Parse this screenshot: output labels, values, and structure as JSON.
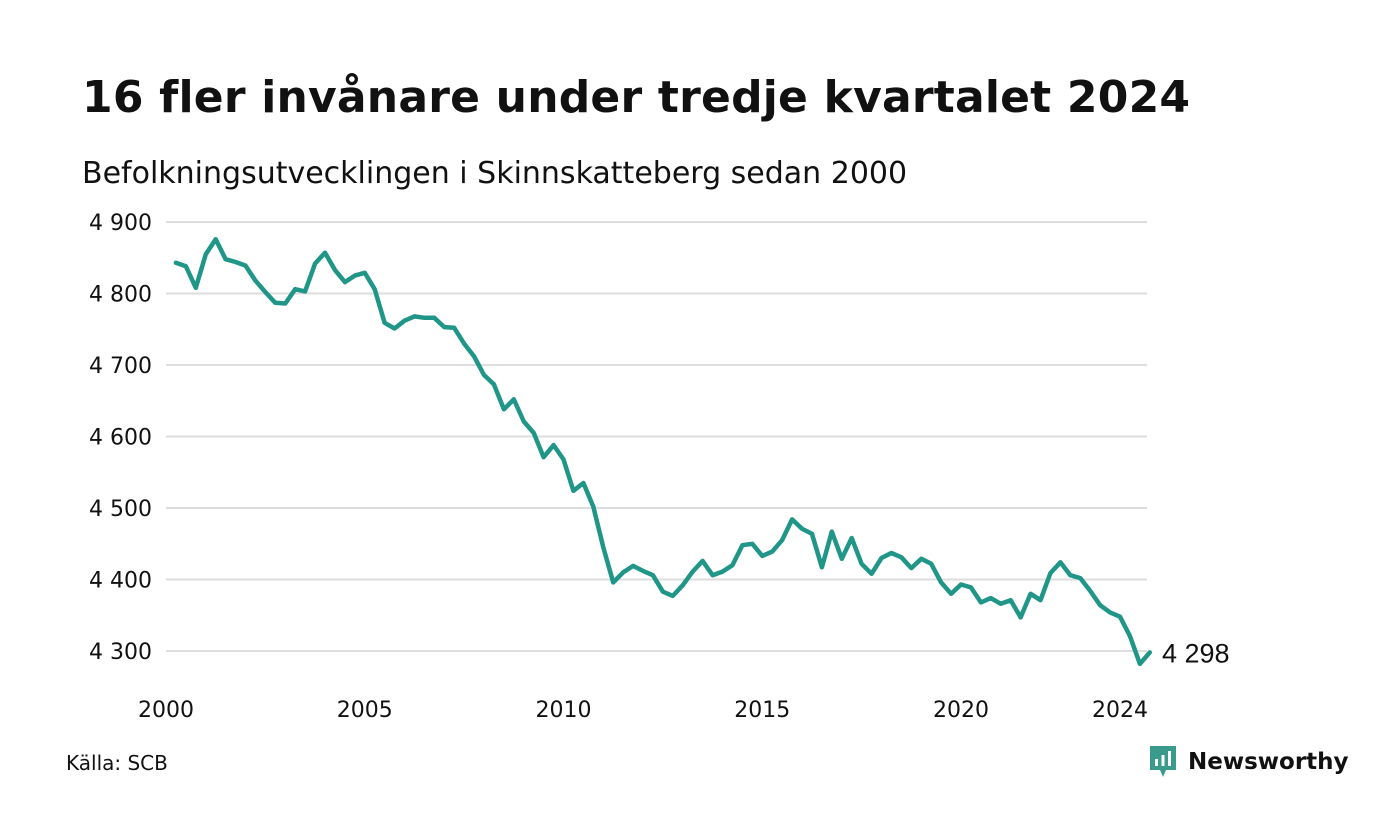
{
  "title": "16 fler invånare under tredje kvartalet 2024",
  "subtitle": "Befolkningsutvecklingen i Skinnskatteberg sedan 2000",
  "source": "Källa: SCB",
  "brand": {
    "name": "Newsworthy",
    "icon": "newsworthy-logo-icon",
    "color": "#3a9b8c"
  },
  "colors": {
    "line": "#1f9687",
    "grid": "#dddddd",
    "text": "#111111"
  },
  "chart_data": {
    "type": "line",
    "title": "16 fler invånare under tredje kvartalet 2024",
    "subtitle": "Befolkningsutvecklingen i Skinnskatteberg sedan 2000",
    "xlabel": "",
    "ylabel": "",
    "grid": "horizontal",
    "xlim": [
      2000,
      2024.75
    ],
    "ylim": [
      4282,
      4900
    ],
    "x_ticks": [
      2000,
      2005,
      2010,
      2015,
      2020,
      2024
    ],
    "y_ticks": [
      {
        "value": 4300,
        "label": "4 300"
      },
      {
        "value": 4400,
        "label": "4 400"
      },
      {
        "value": 4500,
        "label": "4 500"
      },
      {
        "value": 4600,
        "label": "4 600"
      },
      {
        "value": 4700,
        "label": "4 700"
      },
      {
        "value": 4800,
        "label": "4 800"
      },
      {
        "value": 4900,
        "label": "4 900"
      }
    ],
    "end_label": "4 298",
    "series": [
      {
        "x": [
          2000.25,
          2000.5,
          2000.75,
          2001.0,
          2001.25,
          2001.5,
          2001.75,
          2002.0,
          2002.25,
          2002.5,
          2002.75,
          2003.0,
          2003.25,
          2003.5,
          2003.75,
          2004.0,
          2004.25,
          2004.5,
          2004.75,
          2005.0,
          2005.25,
          2005.5,
          2005.75,
          2006.0,
          2006.25,
          2006.5,
          2006.75,
          2007.0,
          2007.25,
          2007.5,
          2007.75,
          2008.0,
          2008.25,
          2008.5,
          2008.75,
          2009.0,
          2009.25,
          2009.5,
          2009.75,
          2010.0,
          2010.25,
          2010.5,
          2010.75,
          2011.0,
          2011.25,
          2011.5,
          2011.75,
          2012.0,
          2012.25,
          2012.5,
          2012.75,
          2013.0,
          2013.25,
          2013.5,
          2013.75,
          2014.0,
          2014.25,
          2014.5,
          2014.75,
          2015.0,
          2015.25,
          2015.5,
          2015.75,
          2016.0,
          2016.25,
          2016.5,
          2016.75,
          2017.0,
          2017.25,
          2017.5,
          2017.75,
          2018.0,
          2018.25,
          2018.5,
          2018.75,
          2019.0,
          2019.25,
          2019.5,
          2019.75,
          2020.0,
          2020.25,
          2020.5,
          2020.75,
          2021.0,
          2021.25,
          2021.5,
          2021.75,
          2022.0,
          2022.25,
          2022.5,
          2022.75,
          2023.0,
          2023.25,
          2023.5,
          2023.75,
          2024.0,
          2024.25,
          2024.5,
          2024.75
        ],
        "values": [
          4843,
          4838,
          4808,
          4855,
          4876,
          4848,
          4844,
          4839,
          4818,
          4802,
          4787,
          4786,
          4806,
          4803,
          4842,
          4857,
          4833,
          4816,
          4825,
          4829,
          4806,
          4759,
          4751,
          4762,
          4768,
          4766,
          4766,
          4753,
          4752,
          4730,
          4712,
          4686,
          4673,
          4638,
          4652,
          4621,
          4605,
          4571,
          4588,
          4568,
          4524,
          4535,
          4502,
          4445,
          4396,
          4410,
          4419,
          4412,
          4406,
          4383,
          4377,
          4392,
          4411,
          4426,
          4406,
          4411,
          4420,
          4448,
          4450,
          4433,
          4439,
          4455,
          4484,
          4471,
          4464,
          4417,
          4467,
          4429,
          4458,
          4422,
          4408,
          4430,
          4437,
          4431,
          4416,
          4429,
          4422,
          4396,
          4380,
          4393,
          4389,
          4368,
          4374,
          4366,
          4371,
          4347,
          4380,
          4371,
          4409,
          4424,
          4406,
          4402,
          4384,
          4364,
          4354,
          4348,
          4321,
          4282,
          4298
        ]
      }
    ]
  }
}
